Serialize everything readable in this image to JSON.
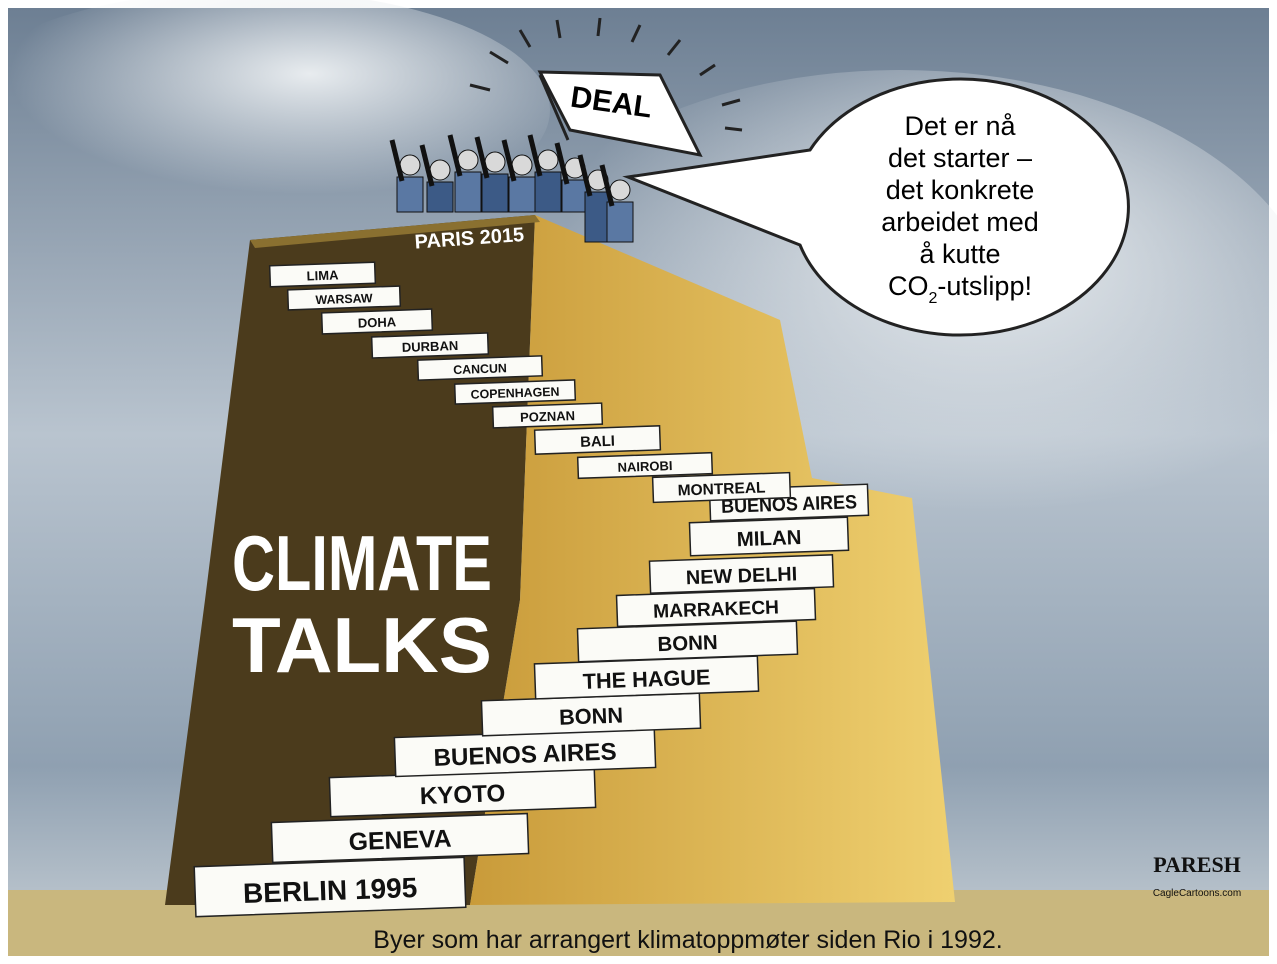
{
  "top_label": "PARIS 2015",
  "steps": [
    "BERLIN 1995",
    "GENEVA",
    "KYOTO",
    "BUENOS AIRES",
    "BONN",
    "THE HAGUE",
    "BONN",
    "MARRAKECH",
    "NEW DELHI",
    "MILAN",
    "BUENOS AIRES",
    "MONTREAL",
    "NAIROBI",
    "BALI",
    "POZNAN",
    "COPENHAGEN",
    "CANCUN",
    "DURBAN",
    "DOHA",
    "WARSAW",
    "LIMA"
  ],
  "title_lines": [
    "CLIMATE",
    "TALKS"
  ],
  "flag": "DEAL",
  "speech": {
    "lines": [
      "Det er nå",
      "det starter –",
      "det konkrete",
      "arbeidet med",
      "å kutte"
    ],
    "last": {
      "main": "CO",
      "sub": "2",
      "rest": "-utslipp!"
    }
  },
  "signature": "PARESH",
  "credit": "CagleCartoons.com",
  "caption": "Byer som har arrangert klimatoppmøter siden Rio i 1992."
}
